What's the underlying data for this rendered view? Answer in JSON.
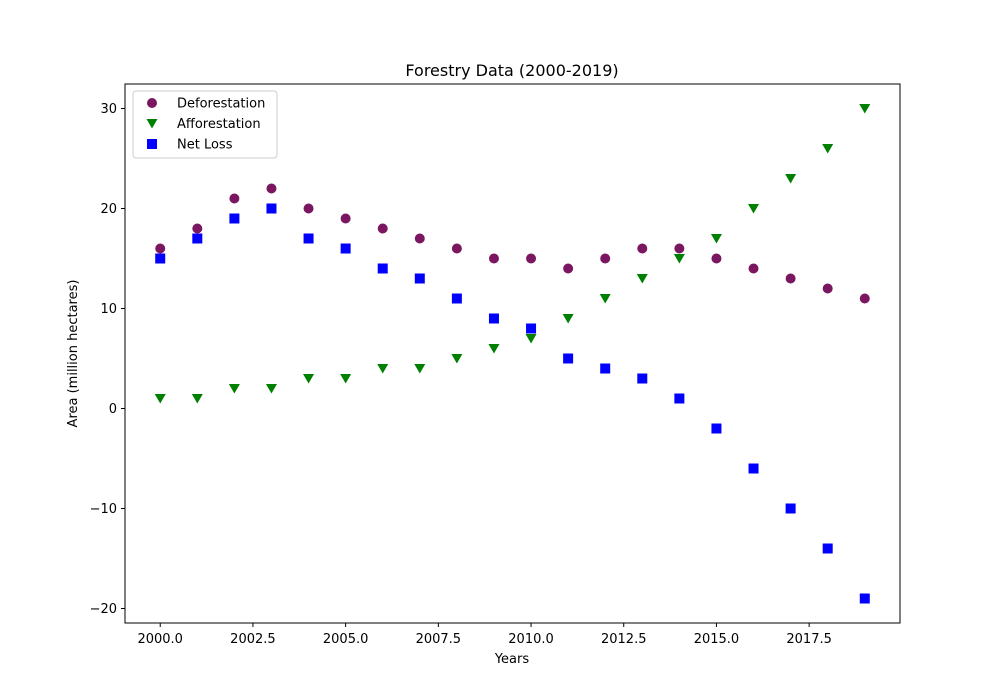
{
  "chart_data": {
    "type": "scatter",
    "title": "Forestry Data (2000-2019)",
    "xlabel": "Years",
    "ylabel": "Area (million hectares)",
    "xlim": [
      1999.05,
      2019.95
    ],
    "ylim": [
      -21.45,
      32.45
    ],
    "x_ticks": [
      2000.0,
      2002.5,
      2005.0,
      2007.5,
      2010.0,
      2012.5,
      2015.0,
      2017.5
    ],
    "x_tick_labels": [
      "2000.0",
      "2002.5",
      "2005.0",
      "2007.5",
      "2010.0",
      "2012.5",
      "2015.0",
      "2017.5"
    ],
    "y_ticks": [
      -20,
      -10,
      0,
      10,
      20,
      30
    ],
    "y_tick_labels": [
      "−20",
      "−10",
      "0",
      "10",
      "20",
      "30"
    ],
    "grid": false,
    "legend_position": "top-left",
    "x": [
      2000,
      2001,
      2002,
      2003,
      2004,
      2005,
      2006,
      2007,
      2008,
      2009,
      2010,
      2011,
      2012,
      2013,
      2014,
      2015,
      2016,
      2017,
      2018,
      2019
    ],
    "series": [
      {
        "name": "Deforestation",
        "marker": "circle",
        "color": "#7b1760",
        "values": [
          16,
          18,
          21,
          22,
          20,
          19,
          18,
          17,
          16,
          15,
          15,
          14,
          15,
          16,
          16,
          15,
          14,
          13,
          12,
          11
        ]
      },
      {
        "name": "Afforestation",
        "marker": "triangle-down",
        "color": "#008000",
        "values": [
          1,
          1,
          2,
          2,
          3,
          3,
          4,
          4,
          5,
          6,
          7,
          9,
          11,
          13,
          15,
          17,
          20,
          23,
          26,
          30
        ]
      },
      {
        "name": "Net Loss",
        "marker": "square",
        "color": "#0000ff",
        "values": [
          15,
          17,
          19,
          20,
          17,
          16,
          14,
          13,
          11,
          9,
          8,
          5,
          4,
          3,
          1,
          -2,
          -6,
          -10,
          -14,
          -19
        ]
      }
    ]
  }
}
